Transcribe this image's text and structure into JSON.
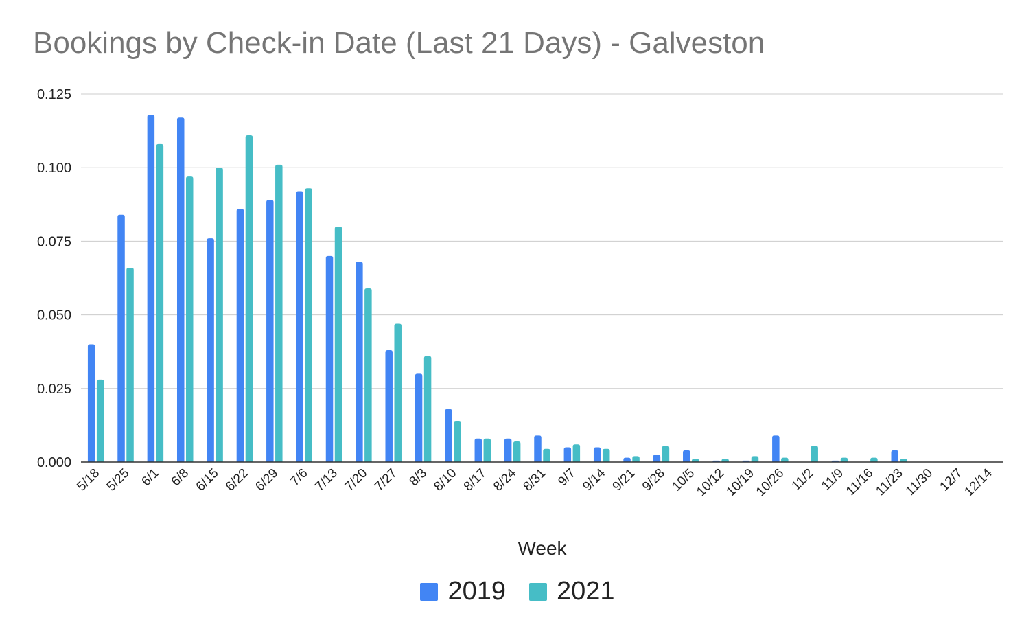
{
  "colors": {
    "series_2019": "#4285f4",
    "series_2021": "#46bdc6",
    "grid": "#cccccc",
    "axis": "#333333",
    "title": "#757575"
  },
  "chart_data": {
    "type": "bar",
    "title": "Bookings by Check-in Date (Last 21 Days) - Galveston",
    "xlabel": "Week",
    "ylabel": "",
    "ylim": [
      0,
      0.125
    ],
    "yticks": [
      "0.000",
      "0.025",
      "0.050",
      "0.075",
      "0.100",
      "0.125"
    ],
    "grid": true,
    "legend_position": "bottom",
    "categories": [
      "5/18",
      "5/25",
      "6/1",
      "6/8",
      "6/15",
      "6/22",
      "6/29",
      "7/6",
      "7/13",
      "7/20",
      "7/27",
      "8/3",
      "8/10",
      "8/17",
      "8/24",
      "8/31",
      "9/7",
      "9/14",
      "9/21",
      "9/28",
      "10/5",
      "10/12",
      "10/19",
      "10/26",
      "11/2",
      "11/9",
      "11/16",
      "11/23",
      "11/30",
      "12/7",
      "12/14"
    ],
    "series": [
      {
        "name": "2019",
        "values": [
          0.04,
          0.084,
          0.118,
          0.117,
          0.076,
          0.086,
          0.089,
          0.092,
          0.07,
          0.068,
          0.038,
          0.03,
          0.018,
          0.008,
          0.008,
          0.009,
          0.005,
          0.005,
          0.0015,
          0.0025,
          0.004,
          0.0005,
          0.0005,
          0.009,
          0.0,
          0.0005,
          0.0,
          0.004,
          0.0,
          0.0,
          0.0
        ]
      },
      {
        "name": "2021",
        "values": [
          0.028,
          0.066,
          0.108,
          0.097,
          0.1,
          0.111,
          0.101,
          0.093,
          0.08,
          0.059,
          0.047,
          0.036,
          0.014,
          0.008,
          0.007,
          0.0045,
          0.006,
          0.0045,
          0.002,
          0.0055,
          0.001,
          0.001,
          0.002,
          0.0015,
          0.0055,
          0.0015,
          0.0015,
          0.001,
          0.0,
          0.0,
          0.0
        ]
      }
    ]
  }
}
